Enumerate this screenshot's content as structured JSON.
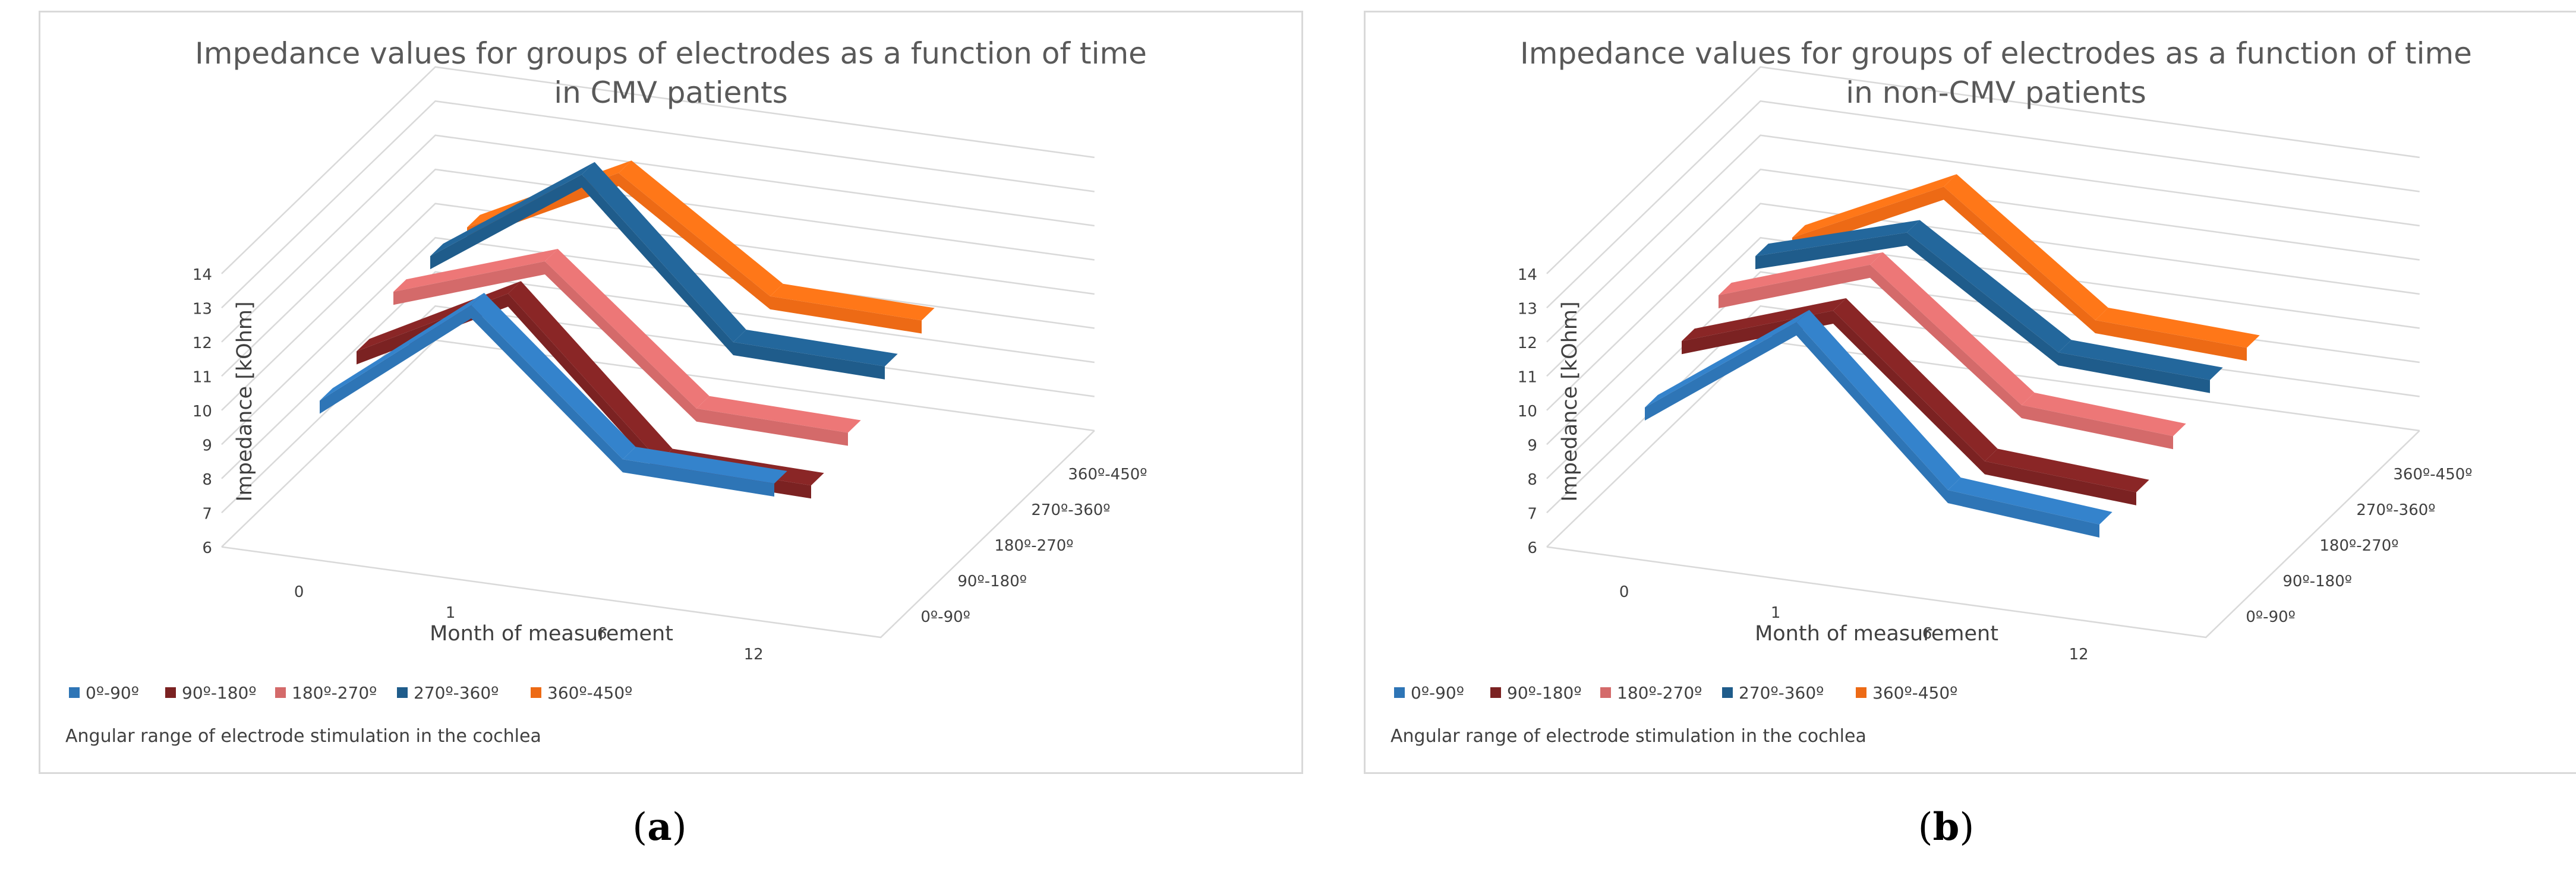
{
  "chart_data": [
    {
      "type": "line-3d",
      "title_line1": "Impedance values for groups of electrodes as a function of time",
      "title_line2": "in CMV patients",
      "xlabel": "Month of measurement",
      "ylabel": "Impedance [kOhm]",
      "categories": [
        "0",
        "1",
        "6",
        "12"
      ],
      "y_ticks": [
        "6",
        "7",
        "8",
        "9",
        "10",
        "11",
        "12",
        "13",
        "14"
      ],
      "ylim": [
        6,
        14
      ],
      "depth_labels": [
        "0º-90º",
        "90º-180º",
        "180º-270º",
        "270º-360º",
        "360º-450º"
      ],
      "series": [
        {
          "name": "0º-90º",
          "color": "#2e75b6",
          "values": [
            10.2,
            13.6,
            9.7,
            9.6
          ]
        },
        {
          "name": "90º-180º",
          "color": "#7b2222",
          "values": [
            10.6,
            12.9,
            8.6,
            8.5
          ]
        },
        {
          "name": "180º-270º",
          "color": "#d46a6a",
          "values": [
            11.3,
            12.8,
            9.1,
            9.0
          ]
        },
        {
          "name": "270º-360º",
          "color": "#1f5c8b",
          "values": [
            11.3,
            14.3,
            10.0,
            9.9
          ]
        },
        {
          "name": "360º-450º",
          "color": "#ed6a15",
          "values": [
            11.1,
            13.3,
            10.3,
            10.2
          ]
        }
      ],
      "legend_title": "Angular range of electrode stimulation in the cochlea",
      "legend_position": "bottom"
    },
    {
      "type": "line-3d",
      "title_line1": "Impedance values for groups of electrodes as a function of time",
      "title_line2": "in non-CMV patients",
      "xlabel": "Month of measurement",
      "ylabel": "Impedance [kOhm]",
      "categories": [
        "0",
        "1",
        "6",
        "12"
      ],
      "y_ticks": [
        "6",
        "7",
        "8",
        "9",
        "10",
        "11",
        "12",
        "13",
        "14"
      ],
      "ylim": [
        6,
        14
      ],
      "depth_labels": [
        "0º-90º",
        "90º-180º",
        "180º-270º",
        "270º-360º",
        "360º-450º"
      ],
      "series": [
        {
          "name": "0º-90º",
          "color": "#2e75b6",
          "values": [
            10.0,
            13.1,
            8.8,
            8.4
          ]
        },
        {
          "name": "90º-180º",
          "color": "#7b2222",
          "values": [
            10.9,
            12.4,
            8.6,
            8.3
          ]
        },
        {
          "name": "180º-270º",
          "color": "#d46a6a",
          "values": [
            11.2,
            12.7,
            9.2,
            8.9
          ]
        },
        {
          "name": "270º-360º",
          "color": "#1f5c8b",
          "values": [
            11.3,
            12.6,
            9.7,
            9.5
          ]
        },
        {
          "name": "360º-450º",
          "color": "#ed6a15",
          "values": [
            10.8,
            12.9,
            9.6,
            9.4
          ]
        }
      ],
      "legend_title": "Angular range of electrode stimulation in the cochlea",
      "legend_position": "bottom"
    }
  ],
  "captions": {
    "a": "a",
    "b": "b"
  }
}
